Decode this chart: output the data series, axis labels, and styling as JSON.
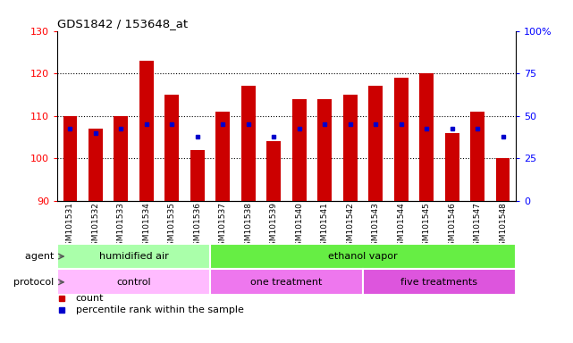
{
  "title": "GDS1842 / 153648_at",
  "samples": [
    "GSM101531",
    "GSM101532",
    "GSM101533",
    "GSM101534",
    "GSM101535",
    "GSM101536",
    "GSM101537",
    "GSM101538",
    "GSM101539",
    "GSM101540",
    "GSM101541",
    "GSM101542",
    "GSM101543",
    "GSM101544",
    "GSM101545",
    "GSM101546",
    "GSM101547",
    "GSM101548"
  ],
  "bar_values": [
    110,
    107,
    110,
    123,
    115,
    102,
    111,
    117,
    104,
    114,
    114,
    115,
    117,
    119,
    120,
    106,
    111,
    100
  ],
  "bar_base": 90,
  "blue_values": [
    107,
    106,
    107,
    108,
    108,
    105,
    108,
    108,
    105,
    107,
    108,
    108,
    108,
    108,
    107,
    107,
    107,
    105
  ],
  "ylim_left": [
    90,
    130
  ],
  "ylim_right": [
    0,
    100
  ],
  "yticks_left": [
    90,
    100,
    110,
    120,
    130
  ],
  "yticks_right": [
    0,
    25,
    50,
    75,
    100
  ],
  "ytick_labels_right": [
    "0",
    "25",
    "50",
    "75",
    "100%"
  ],
  "bar_color": "#cc0000",
  "blue_color": "#0000cc",
  "bg_color": "#ffffff",
  "agent_groups": [
    {
      "label": "humidified air",
      "start": 0,
      "end": 6,
      "color": "#aaffaa"
    },
    {
      "label": "ethanol vapor",
      "start": 6,
      "end": 18,
      "color": "#66ee44"
    }
  ],
  "protocol_groups": [
    {
      "label": "control",
      "start": 0,
      "end": 6,
      "color": "#ffbbff"
    },
    {
      "label": "one treatment",
      "start": 6,
      "end": 12,
      "color": "#ee77ee"
    },
    {
      "label": "five treatments",
      "start": 12,
      "end": 18,
      "color": "#dd55dd"
    }
  ],
  "legend_items": [
    {
      "label": "count",
      "color": "#cc0000"
    },
    {
      "label": "percentile rank within the sample",
      "color": "#0000cc"
    }
  ],
  "agent_label": "agent",
  "protocol_label": "protocol",
  "bar_width": 0.55
}
